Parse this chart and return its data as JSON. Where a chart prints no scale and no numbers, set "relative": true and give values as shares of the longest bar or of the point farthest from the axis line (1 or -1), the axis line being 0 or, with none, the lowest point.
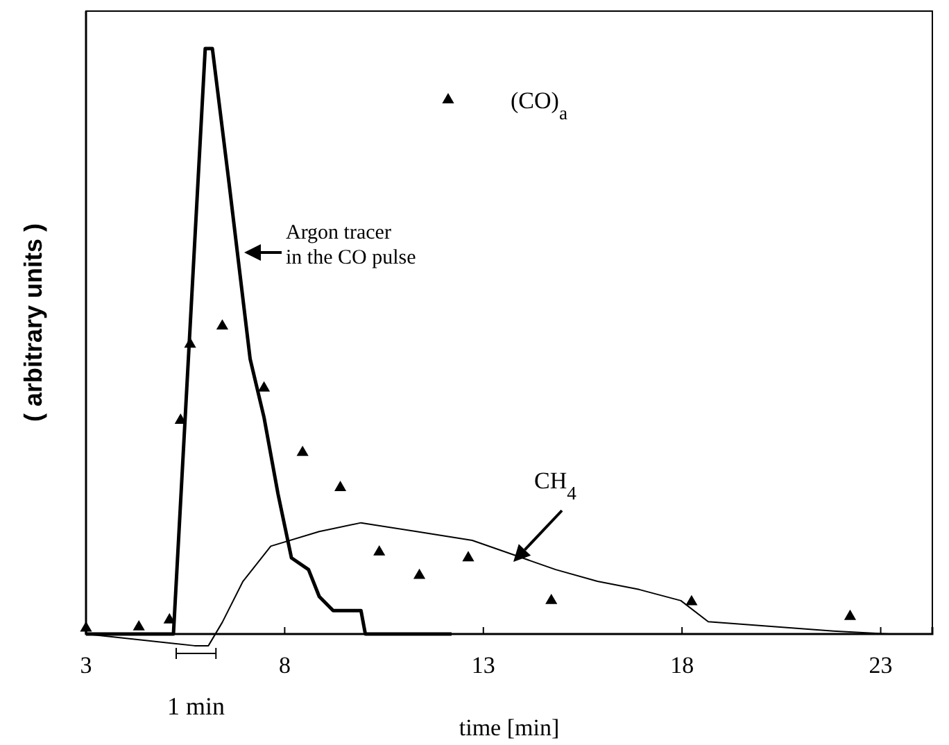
{
  "chart_data": {
    "type": "line",
    "relative": true,
    "xlabel": "time  [min]",
    "ylabel": "( arbitrary units )",
    "xlim": [
      3,
      24.3
    ],
    "xticks": [
      3,
      8,
      13,
      18,
      23
    ],
    "legend": "top",
    "annotations": [
      "1 min"
    ],
    "series": [
      {
        "name": "Argon tracer\nin the CO pulse",
        "color": "#000000",
        "x": [
          3,
          5.2,
          6.0,
          6.18,
          6.6,
          7.13,
          7.48,
          7.83,
          8.17,
          8.6,
          8.87,
          9.22,
          9.92,
          10.03,
          12.2
        ],
        "values": [
          0,
          0,
          1,
          1,
          0.77,
          0.47,
          0.37,
          0.24,
          0.13,
          0.11,
          0.064,
          0.04,
          0.04,
          0,
          0
        ]
      },
      {
        "name": "CH$_{4}$",
        "color": "#000000",
        "x": [
          3,
          5.73,
          6.08,
          6.43,
          6.95,
          7.65,
          8.87,
          9.92,
          11.32,
          12.72,
          13.77,
          14.82,
          15.87,
          16.92,
          17.97,
          18.66,
          20.41,
          21.81,
          23.21,
          24.26
        ],
        "values": [
          0,
          -0.02,
          -0.02,
          0.02,
          0.09,
          0.15,
          0.175,
          0.19,
          0.175,
          0.16,
          0.135,
          0.11,
          0.09,
          0.076,
          0.057,
          0.021,
          0.012,
          0.005,
          0,
          0
        ]
      },
      {
        "name": "(CO)$_{a}$",
        "type": "scatter",
        "marker": "triangle",
        "color": "#000000",
        "x": [
          3,
          4.33,
          5.1,
          5.38,
          5.62,
          6.43,
          7.48,
          8.45,
          9.4,
          10.38,
          11.39,
          12.62,
          14.71,
          18.24,
          22.23
        ],
        "values": [
          0.01,
          0.012,
          0.024,
          0.365,
          0.495,
          0.526,
          0.42,
          0.31,
          0.25,
          0.14,
          0.1,
          0.13,
          0.057,
          0.055,
          0.03
        ]
      }
    ]
  }
}
